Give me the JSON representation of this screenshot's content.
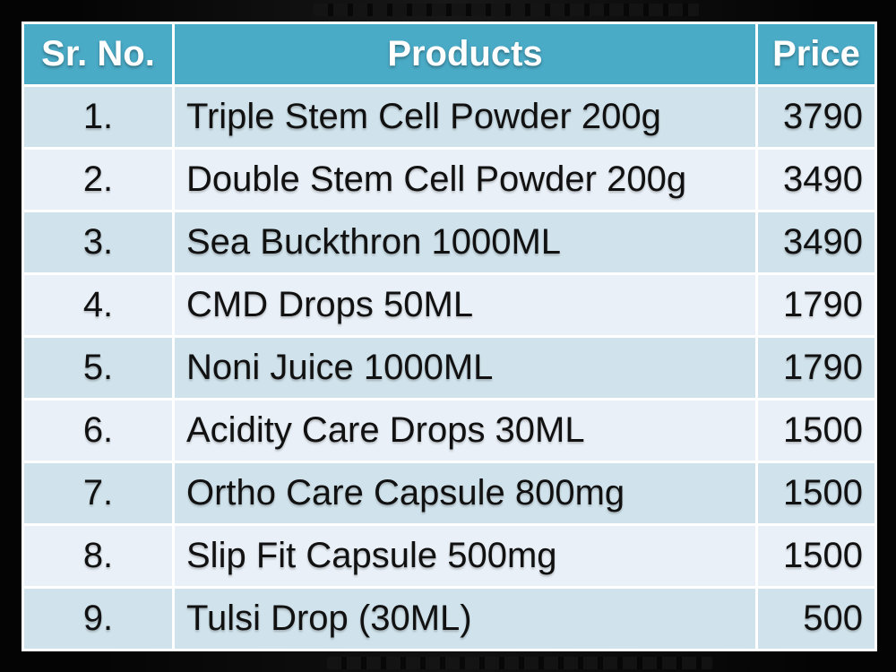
{
  "slide": {
    "table": {
      "headers": [
        {
          "key": "sr",
          "label": "Sr. No."
        },
        {
          "key": "product",
          "label": "Products"
        },
        {
          "key": "price",
          "label": "Price"
        }
      ],
      "rows": [
        {
          "sr": "1.",
          "product": "Triple Stem Cell Powder 200g",
          "price": "3790"
        },
        {
          "sr": "2.",
          "product": "Double Stem Cell Powder 200g",
          "price": "3490"
        },
        {
          "sr": "3.",
          "product": "Sea Buckthron 1000ML",
          "price": "3490"
        },
        {
          "sr": "4.",
          "product": "CMD Drops 50ML",
          "price": "1790"
        },
        {
          "sr": "5.",
          "product": "Noni Juice 1000ML",
          "price": "1790"
        },
        {
          "sr": "6.",
          "product": "Acidity Care Drops 30ML",
          "price": "1500"
        },
        {
          "sr": "7.",
          "product": "Ortho Care Capsule 800mg",
          "price": "1500"
        },
        {
          "sr": "8.",
          "product": "Slip Fit Capsule 500mg",
          "price": "1500"
        },
        {
          "sr": "9.",
          "product": "Tulsi Drop (30ML)",
          "price": "500"
        }
      ]
    },
    "colors": {
      "background": "#040404",
      "grid": "#FFFFFF",
      "header_bg": "#4AABC7",
      "header_text": "#FFFFFF",
      "row_odd_bg": "#D0E2EB",
      "row_even_bg": "#E9F0F7",
      "cell_text": "#111111"
    }
  }
}
